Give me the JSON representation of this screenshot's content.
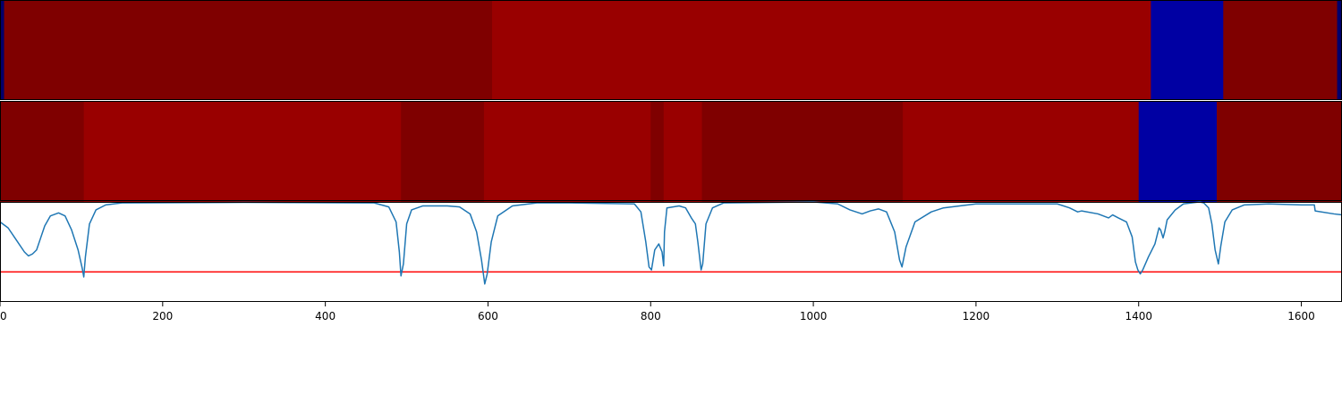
{
  "chart_data": [
    {
      "type": "heatmap",
      "colors": {
        "dark_red": "#7f0000",
        "red": "#990000",
        "blue": "#0000a3",
        "navy": "#00006b"
      },
      "segments": [
        {
          "start": 0,
          "end": 5,
          "color": "navy"
        },
        {
          "start": 5,
          "end": 605,
          "color": "dark_red"
        },
        {
          "start": 605,
          "end": 1415,
          "color": "red"
        },
        {
          "start": 1415,
          "end": 1504,
          "color": "blue"
        },
        {
          "start": 1504,
          "end": 1644,
          "color": "dark_red"
        },
        {
          "start": 1644,
          "end": 1650,
          "color": "navy"
        }
      ]
    },
    {
      "type": "heatmap",
      "colors": {
        "dark_red": "#7f0000",
        "red": "#990000",
        "blue": "#0000a3"
      },
      "segments": [
        {
          "start": 0,
          "end": 103,
          "color": "dark_red"
        },
        {
          "start": 103,
          "end": 493,
          "color": "red"
        },
        {
          "start": 493,
          "end": 595,
          "color": "dark_red"
        },
        {
          "start": 595,
          "end": 800,
          "color": "red"
        },
        {
          "start": 800,
          "end": 816,
          "color": "dark_red"
        },
        {
          "start": 816,
          "end": 863,
          "color": "red"
        },
        {
          "start": 863,
          "end": 1110,
          "color": "dark_red"
        },
        {
          "start": 1110,
          "end": 1400,
          "color": "red"
        },
        {
          "start": 1400,
          "end": 1496,
          "color": "blue"
        },
        {
          "start": 1496,
          "end": 1650,
          "color": "dark_red"
        }
      ]
    },
    {
      "type": "line",
      "series": [
        {
          "color": "#1f77b4",
          "points": [
            [
              0,
              0.2
            ],
            [
              10,
              0.26
            ],
            [
              20,
              0.38
            ],
            [
              30,
              0.5
            ],
            [
              35,
              0.54
            ],
            [
              40,
              0.52
            ],
            [
              45,
              0.48
            ],
            [
              50,
              0.36
            ],
            [
              55,
              0.24
            ],
            [
              62,
              0.14
            ],
            [
              72,
              0.11
            ],
            [
              80,
              0.14
            ],
            [
              88,
              0.28
            ],
            [
              96,
              0.48
            ],
            [
              101,
              0.66
            ],
            [
              103,
              0.75
            ],
            [
              105,
              0.55
            ],
            [
              110,
              0.22
            ],
            [
              118,
              0.08
            ],
            [
              130,
              0.03
            ],
            [
              150,
              0.01
            ],
            [
              300,
              0.005
            ],
            [
              460,
              0.01
            ],
            [
              478,
              0.05
            ],
            [
              487,
              0.2
            ],
            [
              491,
              0.5
            ],
            [
              493,
              0.74
            ],
            [
              496,
              0.62
            ],
            [
              500,
              0.22
            ],
            [
              506,
              0.08
            ],
            [
              520,
              0.04
            ],
            [
              550,
              0.04
            ],
            [
              565,
              0.05
            ],
            [
              578,
              0.12
            ],
            [
              586,
              0.3
            ],
            [
              592,
              0.58
            ],
            [
              596,
              0.82
            ],
            [
              599,
              0.72
            ],
            [
              604,
              0.4
            ],
            [
              612,
              0.14
            ],
            [
              630,
              0.04
            ],
            [
              660,
              0.01
            ],
            [
              700,
              0.01
            ],
            [
              780,
              0.02
            ],
            [
              788,
              0.1
            ],
            [
              794,
              0.4
            ],
            [
              798,
              0.65
            ],
            [
              801,
              0.68
            ],
            [
              805,
              0.48
            ],
            [
              810,
              0.42
            ],
            [
              814,
              0.5
            ],
            [
              816,
              0.64
            ],
            [
              817,
              0.3
            ],
            [
              820,
              0.06
            ],
            [
              835,
              0.04
            ],
            [
              843,
              0.06
            ],
            [
              850,
              0.16
            ],
            [
              855,
              0.22
            ],
            [
              858,
              0.4
            ],
            [
              862,
              0.68
            ],
            [
              864,
              0.62
            ],
            [
              868,
              0.22
            ],
            [
              876,
              0.06
            ],
            [
              890,
              0.01
            ],
            [
              1000,
              0.0
            ],
            [
              1030,
              0.02
            ],
            [
              1045,
              0.08
            ],
            [
              1060,
              0.12
            ],
            [
              1070,
              0.09
            ],
            [
              1080,
              0.07
            ],
            [
              1090,
              0.1
            ],
            [
              1100,
              0.3
            ],
            [
              1106,
              0.58
            ],
            [
              1109,
              0.65
            ],
            [
              1114,
              0.45
            ],
            [
              1125,
              0.2
            ],
            [
              1145,
              0.1
            ],
            [
              1160,
              0.06
            ],
            [
              1200,
              0.02
            ],
            [
              1300,
              0.02
            ],
            [
              1315,
              0.06
            ],
            [
              1325,
              0.1
            ],
            [
              1330,
              0.09
            ],
            [
              1350,
              0.12
            ],
            [
              1363,
              0.16
            ],
            [
              1368,
              0.13
            ],
            [
              1375,
              0.16
            ],
            [
              1385,
              0.2
            ],
            [
              1392,
              0.35
            ],
            [
              1396,
              0.6
            ],
            [
              1399,
              0.68
            ],
            [
              1402,
              0.72
            ],
            [
              1405,
              0.68
            ],
            [
              1412,
              0.55
            ],
            [
              1420,
              0.42
            ],
            [
              1425,
              0.26
            ],
            [
              1427,
              0.28
            ],
            [
              1430,
              0.36
            ],
            [
              1432,
              0.3
            ],
            [
              1435,
              0.18
            ],
            [
              1445,
              0.08
            ],
            [
              1455,
              0.02
            ],
            [
              1475,
              0.0
            ],
            [
              1480,
              0.01
            ],
            [
              1486,
              0.06
            ],
            [
              1490,
              0.22
            ],
            [
              1494,
              0.48
            ],
            [
              1496,
              0.55
            ],
            [
              1498,
              0.62
            ],
            [
              1501,
              0.44
            ],
            [
              1506,
              0.2
            ],
            [
              1515,
              0.08
            ],
            [
              1530,
              0.03
            ],
            [
              1560,
              0.02
            ],
            [
              1600,
              0.03
            ],
            [
              1616,
              0.03
            ],
            [
              1617,
              0.09
            ],
            [
              1640,
              0.12
            ],
            [
              1650,
              0.13
            ]
          ]
        }
      ],
      "threshold": {
        "y": 0.7,
        "color": "#ff0000"
      },
      "xlim": [
        0,
        1650
      ],
      "ylim": [
        0,
        1
      ],
      "xticks": [
        "0",
        "200",
        "400",
        "600",
        "800",
        "1000",
        "1200",
        "1400",
        "1600"
      ]
    }
  ]
}
